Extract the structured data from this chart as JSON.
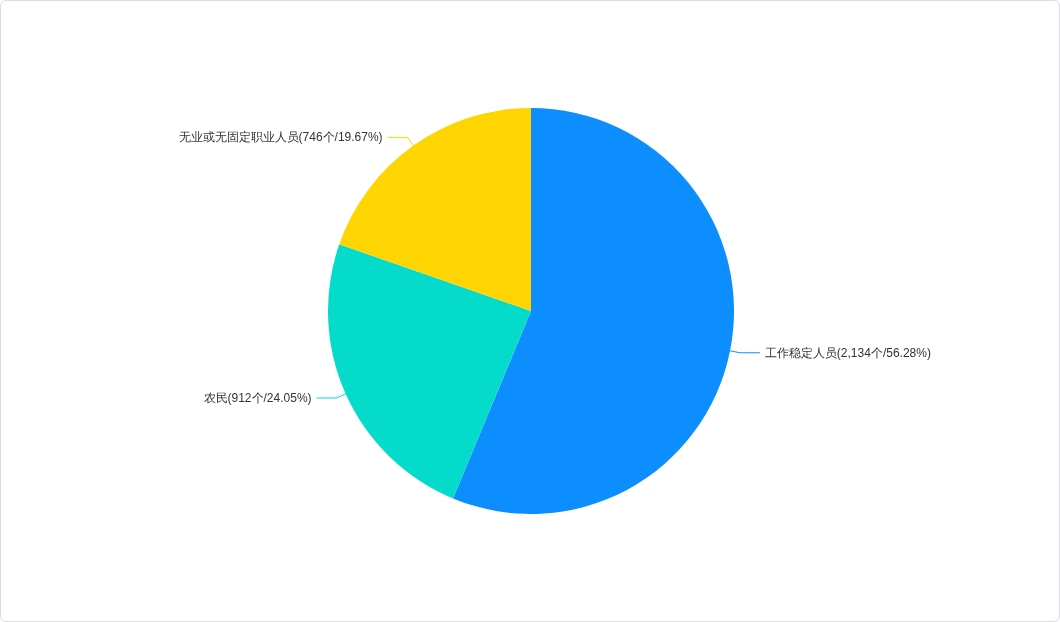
{
  "chart_data": {
    "type": "pie",
    "categories": [
      "工作稳定人员(2,134个/56.28%)",
      "农民(912个/24.05%)",
      "无业或无固定职业人员(746个/19.67%)"
    ],
    "values": [
      56.28,
      24.05,
      19.67
    ],
    "colors": [
      "#0d8efe",
      "#05dbcb",
      "#ffd500"
    ]
  }
}
